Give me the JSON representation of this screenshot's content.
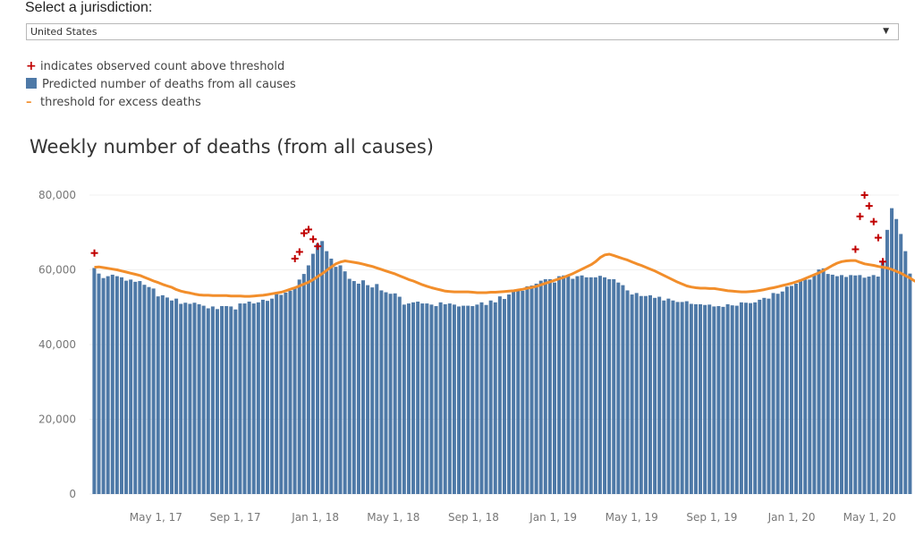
{
  "jurisdiction": {
    "label": "Select a jurisdiction:",
    "selected": "United States"
  },
  "legend": {
    "items": [
      {
        "marker": "plus-icon",
        "label": "indicates observed count above threshold"
      },
      {
        "marker": "square-icon",
        "label": "Predicted number of deaths from all causes"
      },
      {
        "marker": "dash-icon",
        "label": "threshold for excess deaths"
      }
    ]
  },
  "colors": {
    "bar": "#4e79a7",
    "threshold": "#f28e2b",
    "excess": "#c00000"
  },
  "chart_data": {
    "type": "bar",
    "title": "Weekly number of deaths (from all causes)",
    "xlabel": "",
    "ylabel": "",
    "ylim": [
      0,
      80000
    ],
    "yticks": [
      "0",
      "20,000",
      "40,000",
      "60,000",
      "80,000"
    ],
    "ytick_values": [
      0,
      20000,
      40000,
      60000,
      80000
    ],
    "xticks": [
      "May 1, 17",
      "Sep 1, 17",
      "Jan 1, 18",
      "May 1, 18",
      "Sep 1, 18",
      "Jan 1, 19",
      "May 1, 19",
      "Sep 1, 19",
      "Jan 1, 20",
      "May 1, 20"
    ],
    "xtick_weeks": [
      14,
      31.4,
      49,
      66.1,
      83.7,
      101.2,
      118.4,
      136,
      153.5,
      170.6
    ],
    "grid": true,
    "series": [
      {
        "name": "Predicted number of deaths from all causes",
        "kind": "bar",
        "values": [
          60500,
          59000,
          57800,
          58300,
          58700,
          58300,
          58000,
          57100,
          57400,
          56800,
          57000,
          56000,
          55400,
          55000,
          52900,
          53200,
          52600,
          51800,
          52300,
          50900,
          51200,
          50900,
          51200,
          50800,
          50400,
          49700,
          50200,
          49500,
          50300,
          50300,
          50200,
          49400,
          51000,
          51000,
          51500,
          51000,
          51300,
          52000,
          51700,
          52300,
          53500,
          53300,
          53900,
          54400,
          55400,
          57400,
          58900,
          61200,
          64300,
          67000,
          67700,
          65000,
          63000,
          60800,
          61200,
          59600,
          57600,
          57000,
          56300,
          57200,
          55900,
          55300,
          56200,
          54500,
          54000,
          53600,
          53700,
          52800,
          50700,
          51000,
          51300,
          51500,
          51000,
          51000,
          50700,
          50300,
          51300,
          50800,
          51000,
          50700,
          50200,
          50400,
          50400,
          50300,
          50700,
          51300,
          50600,
          51800,
          51300,
          52900,
          52200,
          53400,
          54400,
          54400,
          54400,
          55600,
          55800,
          56300,
          57100,
          57500,
          57500,
          56600,
          58300,
          58500,
          58300,
          57600,
          58300,
          58500,
          58000,
          58000,
          58000,
          58400,
          58000,
          57500,
          57500,
          56600,
          55900,
          54500,
          53400,
          53800,
          53000,
          53000,
          53200,
          52500,
          52800,
          51800,
          52300,
          51800,
          51400,
          51400,
          51600,
          50900,
          50800,
          50800,
          50600,
          50700,
          50200,
          50300,
          50100,
          50800,
          50500,
          50400,
          51300,
          51200,
          51100,
          51300,
          52000,
          52500,
          52300,
          53800,
          53600,
          54200,
          55500,
          55700,
          56300,
          57000,
          57400,
          57400,
          58500,
          60100,
          60400,
          58900,
          58700,
          58300,
          58600,
          58100,
          58600,
          58500,
          58600,
          57900,
          58200,
          58600,
          58200,
          62000,
          70700,
          76500,
          73600,
          69600,
          65000,
          59000
        ]
      },
      {
        "name": "threshold for excess deaths",
        "kind": "line",
        "values": [
          60700,
          60800,
          60600,
          60400,
          60200,
          60000,
          59700,
          59400,
          59100,
          58800,
          58500,
          58000,
          57500,
          57000,
          56600,
          56100,
          55700,
          55300,
          54700,
          54300,
          54000,
          53800,
          53500,
          53300,
          53200,
          53200,
          53100,
          53100,
          53100,
          53100,
          53000,
          53000,
          53000,
          52900,
          52900,
          53000,
          53100,
          53200,
          53400,
          53600,
          53800,
          54000,
          54400,
          54800,
          55200,
          55700,
          56200,
          56700,
          57400,
          58200,
          59000,
          59900,
          60800,
          61600,
          62100,
          62400,
          62200,
          62000,
          61800,
          61500,
          61200,
          60900,
          60500,
          60100,
          59700,
          59300,
          58900,
          58400,
          57900,
          57400,
          57000,
          56500,
          56000,
          55600,
          55200,
          54900,
          54600,
          54300,
          54200,
          54100,
          54100,
          54100,
          54100,
          54000,
          53900,
          53900,
          53900,
          54000,
          54000,
          54100,
          54200,
          54300,
          54400,
          54600,
          54800,
          55100,
          55300,
          55600,
          56000,
          56400,
          56800,
          57200,
          57600,
          58000,
          58500,
          59000,
          59600,
          60200,
          60800,
          61400,
          62200,
          63300,
          64000,
          64200,
          63800,
          63400,
          63000,
          62600,
          62100,
          61600,
          61200,
          60700,
          60200,
          59700,
          59100,
          58500,
          57900,
          57300,
          56700,
          56200,
          55700,
          55400,
          55200,
          55100,
          55100,
          55000,
          55000,
          54800,
          54600,
          54400,
          54300,
          54200,
          54100,
          54100,
          54200,
          54300,
          54500,
          54700,
          55000,
          55200,
          55500,
          55800,
          56100,
          56400,
          56800,
          57200,
          57700,
          58200,
          58700,
          59200,
          59800,
          60500,
          61200,
          61800,
          62200,
          62400,
          62500,
          62500,
          62000,
          61600,
          61400,
          61200,
          60900,
          60700,
          60500,
          60100,
          59600,
          59100,
          58400,
          57800,
          57000,
          56500,
          56000
        ]
      },
      {
        "name": "indicates observed count above threshold",
        "kind": "marker",
        "points": [
          {
            "week": 0,
            "value": 64500
          },
          {
            "week": 44,
            "value": 63000
          },
          {
            "week": 45,
            "value": 64800
          },
          {
            "week": 46,
            "value": 69800
          },
          {
            "week": 47,
            "value": 70800
          },
          {
            "week": 48,
            "value": 68200
          },
          {
            "week": 49,
            "value": 66300
          },
          {
            "week": 167,
            "value": 65500
          },
          {
            "week": 168,
            "value": 74300
          },
          {
            "week": 169,
            "value": 80000
          },
          {
            "week": 170,
            "value": 77100
          },
          {
            "week": 171,
            "value": 72900
          },
          {
            "week": 172,
            "value": 68600
          },
          {
            "week": 173,
            "value": 62200
          }
        ]
      }
    ]
  }
}
